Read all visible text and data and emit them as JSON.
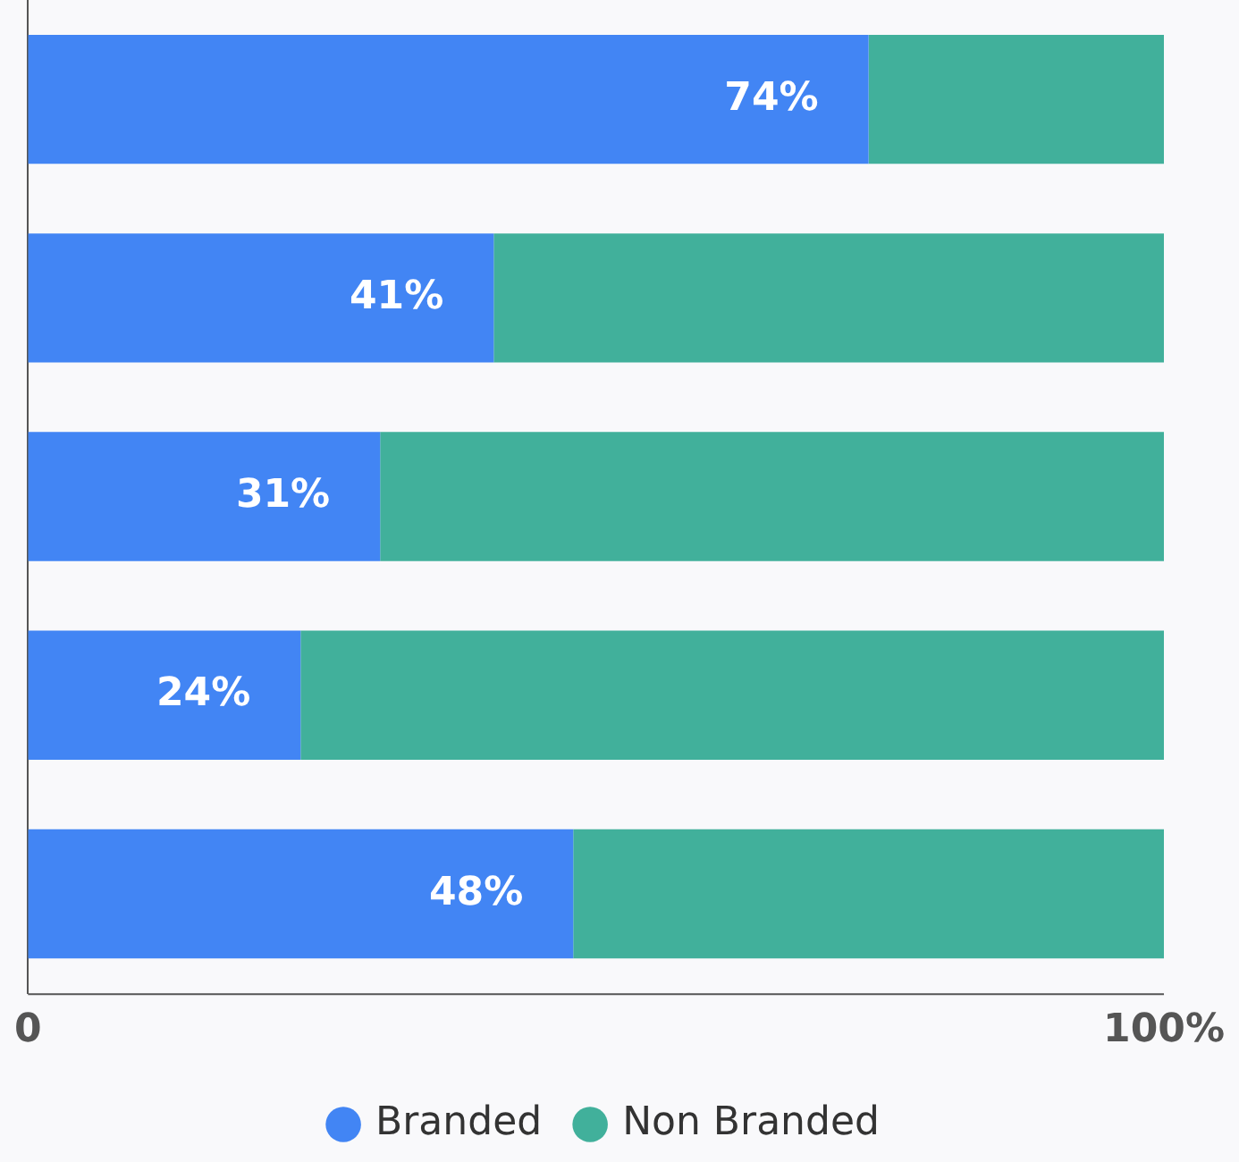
{
  "chart_data": {
    "type": "bar",
    "orientation": "horizontal",
    "stacked": true,
    "categories": [
      null,
      null,
      null,
      null,
      null
    ],
    "series": [
      {
        "name": "Branded",
        "color": "#4285f4",
        "values": [
          74,
          41,
          31,
          24,
          48
        ],
        "value_labels": [
          "74%",
          "41%",
          "31%",
          "24%",
          "48%"
        ]
      },
      {
        "name": "Non Branded",
        "color": "#41b09b",
        "values": [
          26,
          59,
          69,
          76,
          52
        ]
      }
    ],
    "xlim": [
      0,
      100
    ],
    "xticks": [
      {
        "value": 0,
        "label": "0"
      },
      {
        "value": 100,
        "label": "100%"
      }
    ],
    "grid": false,
    "legend": "bottom"
  }
}
